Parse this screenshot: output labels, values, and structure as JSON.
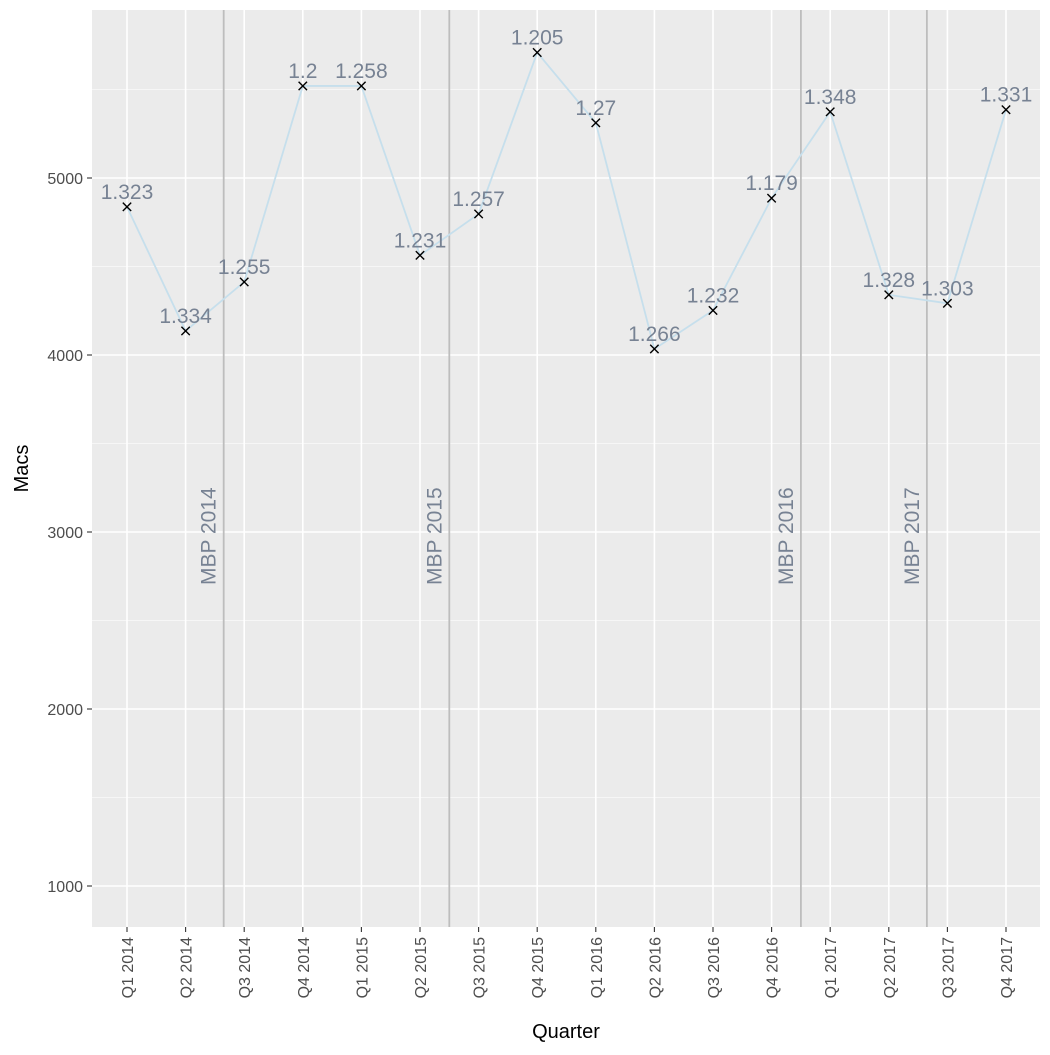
{
  "chart_data": {
    "type": "line",
    "xlabel": "Quarter",
    "ylabel": "Macs",
    "ylim": [
      800,
      5980
    ],
    "yticks": [
      1000,
      2000,
      3000,
      4000,
      5000
    ],
    "grid": true,
    "categories": [
      "Q1 2014",
      "Q2 2014",
      "Q3 2014",
      "Q4 2014",
      "Q1 2015",
      "Q2 2015",
      "Q3 2015",
      "Q4 2015",
      "Q1 2016",
      "Q2 2016",
      "Q3 2016",
      "Q4 2016",
      "Q1 2017",
      "Q2 2017",
      "Q3 2017",
      "Q4 2017"
    ],
    "series": [
      {
        "values": [
          4837,
          4136,
          4413,
          5520,
          5520,
          4563,
          4797,
          5709,
          5312,
          4034,
          4252,
          4886,
          5374,
          4340,
          4292,
          5386
        ],
        "point_labels": [
          "1.323",
          "1.334",
          "1.255",
          "1.2",
          "1.258",
          "1.231",
          "1.257",
          "1.205",
          "1.27",
          "1.266",
          "1.232",
          "1.179",
          "1.348",
          "1.328",
          "1.303",
          "1.331"
        ]
      }
    ],
    "annotations": [
      {
        "label": "MBP 2014",
        "after_index": 1.65
      },
      {
        "label": "MBP 2015",
        "after_index": 5.5
      },
      {
        "label": "MBP 2016",
        "after_index": 11.5
      },
      {
        "label": "MBP 2017",
        "after_index": 13.65
      }
    ],
    "colors": {
      "panel": "#ebebeb",
      "grid": "#ffffff",
      "line": "#c6dfec",
      "marker": "#000000",
      "vline": "#bdbdbd",
      "label": "#778293"
    }
  }
}
